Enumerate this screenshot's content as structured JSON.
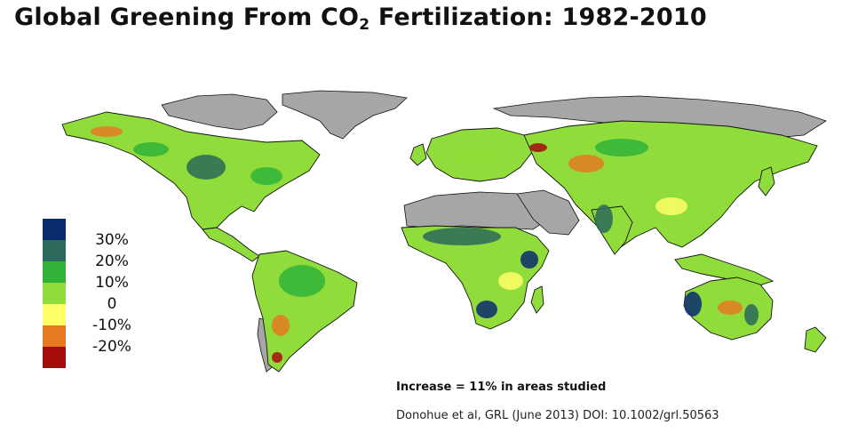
{
  "title": {
    "prefix": "Global Greening From CO",
    "subscript": "2",
    "suffix": " Fertilization: 1982-2010"
  },
  "legend": {
    "items": [
      {
        "label": "30%",
        "color": "#0a2a6e"
      },
      {
        "label": "20%",
        "color": "#2b6a5a"
      },
      {
        "label": "10%",
        "color": "#31b33a"
      },
      {
        "label": "0",
        "color": "#8fdc3a"
      },
      {
        "label": "-10%",
        "color": "#ffff66"
      },
      {
        "label": "-20%",
        "color": "#e47a22"
      },
      {
        "label": "",
        "color": "#a50d0d"
      }
    ]
  },
  "colors": {
    "no_data": "#a6a6a6",
    "land_base": "#8fdc3a",
    "ocean": "#ffffff"
  },
  "note": "Increase = 11% in areas studied",
  "citation": "Donohue et al, GRL (June 2013) DOI: 10.1002/grl.50563"
}
